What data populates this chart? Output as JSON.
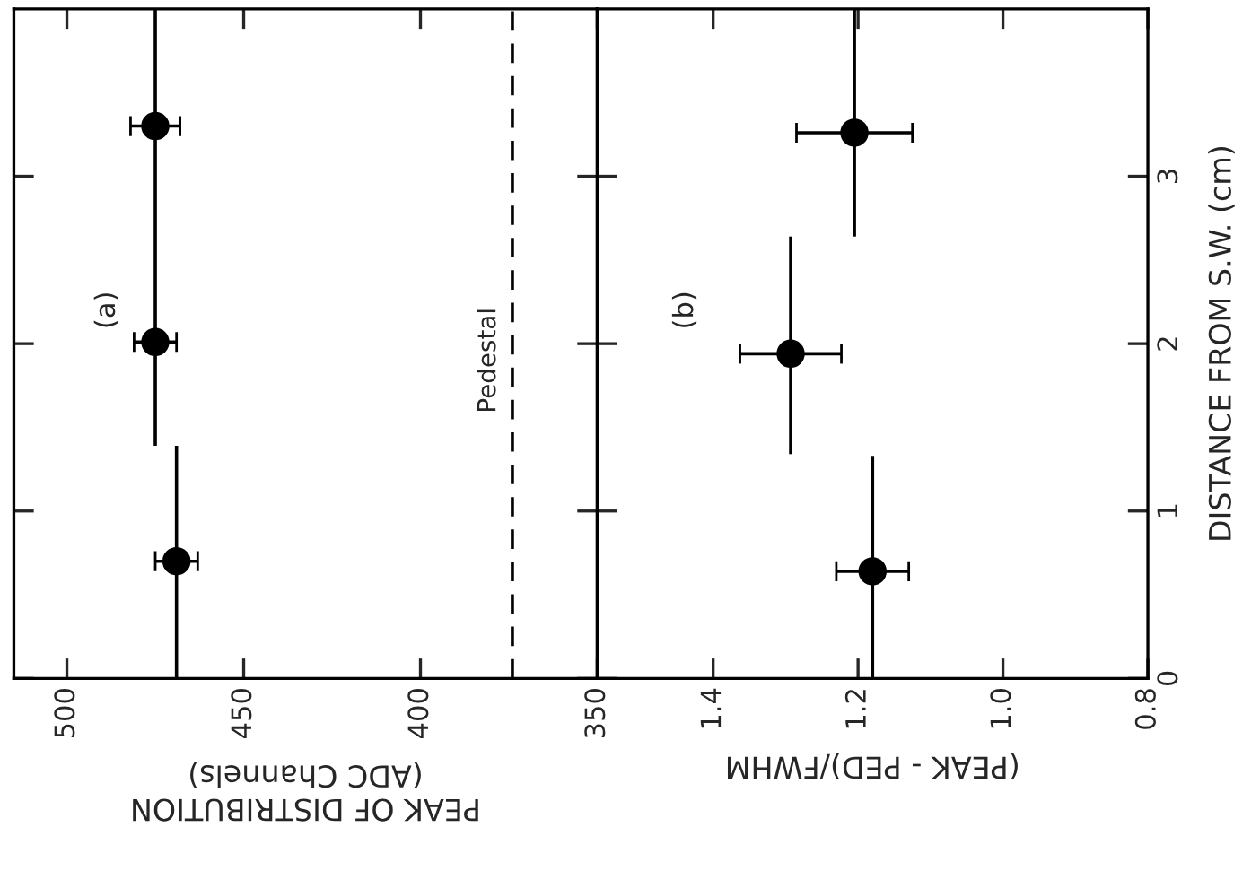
{
  "chart_data": [
    {
      "type": "scatter",
      "xlabel": "PEAK OF DISTRIBUTION\n(ADC Channels)",
      "x": [
        469,
        475,
        475
      ],
      "marker": "circle",
      "series": [
        {
          "color": "#000000",
          "values": [
            0.7,
            2.01,
            3.3
          ],
          "errors": [
            [
              0,
              1.39
            ],
            [
              1.39,
              2.66
            ],
            [
              2.66,
              4.0
            ]
          ],
          "xerrors": [
            6,
            6,
            7
          ]
        }
      ],
      "xlim": [
        515,
        350
      ],
      "xticks": [
        500,
        450,
        400,
        350
      ],
      "ylim": [
        0,
        4
      ],
      "yticks": [
        0,
        1,
        2,
        3
      ],
      "tick_labels": "x",
      "ref_lines": [
        {
          "axis": "x",
          "value": 374,
          "label": "Pedestal",
          "line_style": "dashed",
          "color": "#000000"
        }
      ],
      "annotations": [
        "(a)"
      ]
    },
    {
      "type": "scatter",
      "xlabel": "(PEAK - PED)/FWHM",
      "ylabel": "DISTANCE FROM S.W. (cm)",
      "x": [
        1.18,
        1.293,
        1.205
      ],
      "marker": "circle",
      "series": [
        {
          "color": "#000000",
          "values": [
            0.64,
            1.94,
            3.26
          ],
          "errors": [
            [
              0,
              1.33
            ],
            [
              1.34,
              2.64
            ],
            [
              2.64,
              4.0
            ]
          ],
          "xerrors": [
            0.05,
            0.07,
            0.08
          ]
        }
      ],
      "xlim": [
        1.56,
        0.8
      ],
      "xticks": [
        1.4,
        1.2,
        {
          "value": 1.0,
          "label": "1.0"
        },
        0.8
      ],
      "ylim": [
        0,
        4
      ],
      "yticks": [
        0,
        1,
        2,
        3
      ],
      "annotations": [
        "(b)"
      ]
    }
  ]
}
